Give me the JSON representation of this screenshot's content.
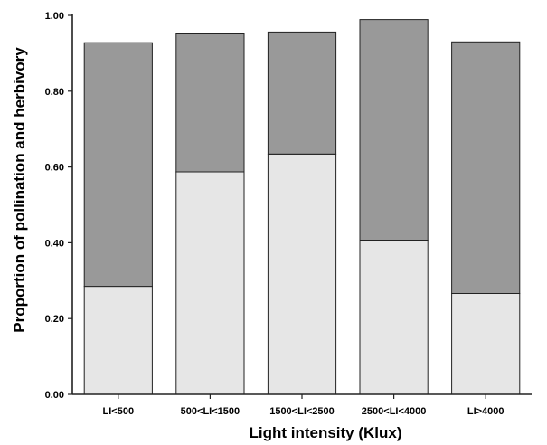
{
  "chart_data": {
    "type": "bar",
    "stacked": true,
    "categories": [
      "LI<500",
      "500<LI<1500",
      "1500<LI<2500",
      "2500<LI<4000",
      "LI>4000"
    ],
    "series": [
      {
        "color": "#e6e6e6",
        "values": [
          0.285,
          0.587,
          0.634,
          0.407,
          0.266
        ]
      },
      {
        "color": "#999999",
        "values": [
          0.643,
          0.364,
          0.322,
          0.582,
          0.664
        ]
      }
    ],
    "xlabel": "Light intensity (Klux)",
    "ylabel": "Proportion of pollination and herbivory",
    "ylim": [
      0,
      1.0
    ],
    "yticks": [
      0.0,
      0.2,
      0.4,
      0.6,
      0.8,
      1.0
    ],
    "ytick_labels": [
      "0.00",
      "0.20",
      "0.40",
      "0.60",
      "0.80",
      "1.00"
    ],
    "grid": false,
    "legend": "none"
  }
}
